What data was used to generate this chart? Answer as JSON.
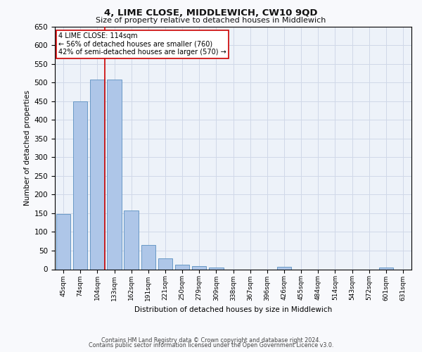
{
  "title": "4, LIME CLOSE, MIDDLEWICH, CW10 9QD",
  "subtitle": "Size of property relative to detached houses in Middlewich",
  "xlabel": "Distribution of detached houses by size in Middlewich",
  "ylabel": "Number of detached properties",
  "categories": [
    "45sqm",
    "74sqm",
    "104sqm",
    "133sqm",
    "162sqm",
    "191sqm",
    "221sqm",
    "250sqm",
    "279sqm",
    "309sqm",
    "338sqm",
    "367sqm",
    "396sqm",
    "426sqm",
    "455sqm",
    "484sqm",
    "514sqm",
    "543sqm",
    "572sqm",
    "601sqm",
    "631sqm"
  ],
  "values": [
    148,
    450,
    507,
    507,
    158,
    65,
    30,
    13,
    8,
    4,
    0,
    0,
    0,
    6,
    0,
    0,
    0,
    0,
    0,
    5,
    0
  ],
  "bar_color": "#aec6e8",
  "bar_edge_color": "#5a8fc0",
  "annotation_lines": [
    "4 LIME CLOSE: 114sqm",
    "← 56% of detached houses are smaller (760)",
    "42% of semi-detached houses are larger (570) →"
  ],
  "annotation_box_color": "#ffffff",
  "annotation_box_edge_color": "#cc0000",
  "vline_color": "#cc0000",
  "ylim": [
    0,
    650
  ],
  "yticks": [
    0,
    50,
    100,
    150,
    200,
    250,
    300,
    350,
    400,
    450,
    500,
    550,
    600,
    650
  ],
  "grid_color": "#d0d8e8",
  "background_color": "#edf2f9",
  "fig_background": "#f8f9fc",
  "footer_line1": "Contains HM Land Registry data © Crown copyright and database right 2024.",
  "footer_line2": "Contains public sector information licensed under the Open Government Licence v3.0."
}
